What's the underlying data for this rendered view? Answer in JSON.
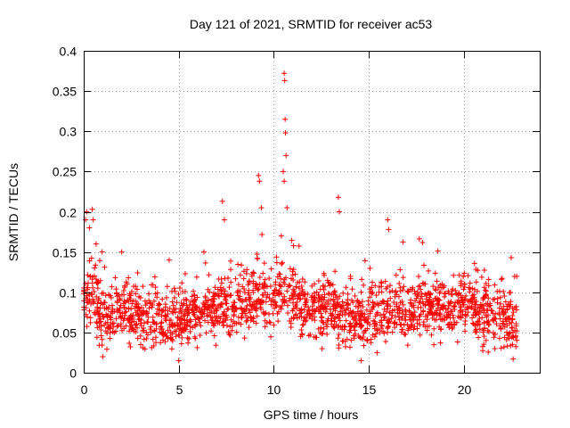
{
  "chart_data": {
    "type": "scatter",
    "title": "Day 121 of 2021, SRMTID for receiver ac53",
    "xlabel": "GPS time / hours",
    "ylabel": "SRMTID / TECUs",
    "xlim": [
      0,
      24
    ],
    "ylim": [
      0,
      0.4
    ],
    "xticks": [
      0,
      5,
      10,
      15,
      20
    ],
    "xtick_labels": [
      "0",
      "5",
      "10",
      "15",
      "20"
    ],
    "yticks": [
      0,
      0.05,
      0.1,
      0.15,
      0.2,
      0.25,
      0.3,
      0.35,
      0.4
    ],
    "ytick_labels": [
      "0",
      "0.05",
      "0.1",
      "0.15",
      "0.2",
      "0.25",
      "0.3",
      "0.35",
      "0.4"
    ],
    "grid": true,
    "marker": "plus",
    "color": "#ff0000",
    "x_span": [
      0,
      22.8
    ],
    "baseline_profile": {
      "hours": [
        0,
        0.5,
        1,
        2,
        3,
        4,
        4.5,
        5,
        6,
        7,
        8,
        9,
        10,
        10.5,
        11,
        12,
        13,
        14,
        15,
        16,
        17,
        18,
        19,
        20,
        21,
        22,
        22.8
      ],
      "median": [
        0.09,
        0.1,
        0.07,
        0.075,
        0.07,
        0.065,
        0.06,
        0.065,
        0.075,
        0.08,
        0.08,
        0.09,
        0.095,
        0.1,
        0.09,
        0.075,
        0.08,
        0.06,
        0.07,
        0.08,
        0.075,
        0.085,
        0.08,
        0.085,
        0.07,
        0.07,
        0.055
      ],
      "spread": 0.025
    },
    "notable_points": [
      {
        "x": 0.1,
        "y": 0.19
      },
      {
        "x": 0.15,
        "y": 0.2
      },
      {
        "x": 0.3,
        "y": 0.18
      },
      {
        "x": 0.45,
        "y": 0.203
      },
      {
        "x": 0.5,
        "y": 0.19
      },
      {
        "x": 0.65,
        "y": 0.16
      },
      {
        "x": 1.0,
        "y": 0.02
      },
      {
        "x": 2.0,
        "y": 0.15
      },
      {
        "x": 4.5,
        "y": 0.14
      },
      {
        "x": 5.0,
        "y": 0.015
      },
      {
        "x": 7.3,
        "y": 0.213
      },
      {
        "x": 7.4,
        "y": 0.19
      },
      {
        "x": 9.2,
        "y": 0.245
      },
      {
        "x": 9.25,
        "y": 0.238
      },
      {
        "x": 9.35,
        "y": 0.205
      },
      {
        "x": 10.55,
        "y": 0.372
      },
      {
        "x": 10.58,
        "y": 0.363
      },
      {
        "x": 10.6,
        "y": 0.315
      },
      {
        "x": 10.62,
        "y": 0.298
      },
      {
        "x": 10.65,
        "y": 0.27
      },
      {
        "x": 10.5,
        "y": 0.25
      },
      {
        "x": 10.55,
        "y": 0.238
      },
      {
        "x": 10.7,
        "y": 0.205
      },
      {
        "x": 10.4,
        "y": 0.17
      },
      {
        "x": 13.4,
        "y": 0.218
      },
      {
        "x": 13.45,
        "y": 0.2
      },
      {
        "x": 14.6,
        "y": 0.015
      },
      {
        "x": 16.0,
        "y": 0.19
      },
      {
        "x": 16.05,
        "y": 0.178
      },
      {
        "x": 22.5,
        "y": 0.143
      },
      {
        "x": 22.6,
        "y": 0.017
      }
    ]
  }
}
